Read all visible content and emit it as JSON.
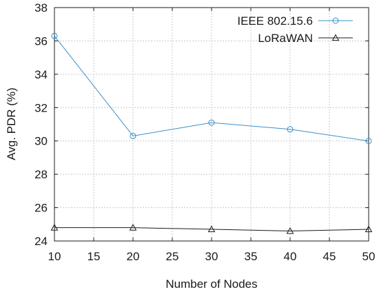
{
  "chart_data": {
    "type": "line",
    "xlabel": "Number of Nodes",
    "ylabel": "Avg. PDR (%)",
    "xlim": [
      10,
      50
    ],
    "ylim": [
      24,
      38
    ],
    "xticks": [
      10,
      15,
      20,
      25,
      30,
      35,
      40,
      45,
      50
    ],
    "yticks": [
      24,
      26,
      28,
      30,
      32,
      34,
      36,
      38
    ],
    "grid": true,
    "legend_position": "top-right",
    "x": [
      10,
      20,
      30,
      40,
      50
    ],
    "series": [
      {
        "name": "IEEE 802.15.6",
        "values": [
          36.3,
          30.3,
          31.1,
          30.7,
          30.0
        ],
        "color": "#3a8fc8",
        "marker": "circle"
      },
      {
        "name": "LoRaWAN",
        "values": [
          24.8,
          24.8,
          24.7,
          24.6,
          24.7
        ],
        "color": "#1a1a1a",
        "marker": "triangle"
      }
    ]
  }
}
